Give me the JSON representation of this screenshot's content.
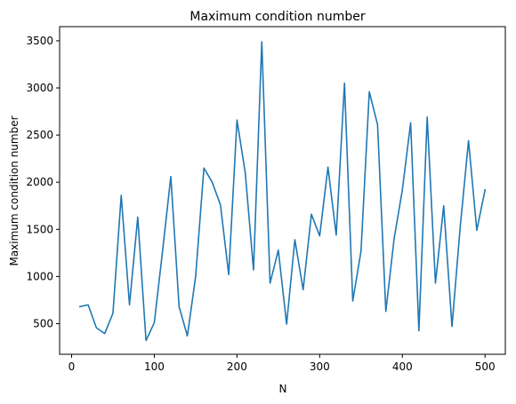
{
  "chart_data": {
    "type": "line",
    "title": "Maximum condition number",
    "xlabel": "N",
    "ylabel": "Maximum condition number",
    "xlim": [
      -14.5,
      524.5
    ],
    "ylim": [
      175,
      3650
    ],
    "xticks": [
      0,
      100,
      200,
      300,
      400,
      500
    ],
    "yticks": [
      500,
      1000,
      1500,
      2000,
      2500,
      3000,
      3500
    ],
    "grid": false,
    "legend": "none",
    "series": [
      {
        "color": "#1f77b4",
        "x": [
          10,
          20,
          30,
          40,
          50,
          60,
          70,
          80,
          90,
          100,
          110,
          120,
          130,
          140,
          150,
          160,
          170,
          180,
          190,
          200,
          210,
          220,
          230,
          240,
          250,
          260,
          270,
          280,
          290,
          300,
          310,
          320,
          330,
          340,
          350,
          360,
          370,
          380,
          390,
          400,
          410,
          420,
          430,
          440,
          450,
          460,
          470,
          480,
          490,
          500
        ],
        "y": [
          680,
          700,
          455,
          395,
          610,
          1860,
          700,
          1630,
          320,
          510,
          1270,
          2060,
          680,
          370,
          1000,
          2150,
          2000,
          1760,
          1020,
          2660,
          2100,
          1070,
          3490,
          930,
          1280,
          495,
          1390,
          860,
          1660,
          1430,
          2160,
          1440,
          3050,
          740,
          1270,
          2960,
          2610,
          630,
          1400,
          1920,
          2630,
          425,
          2690,
          930,
          1750,
          470,
          1530,
          2440,
          1490,
          1920
        ]
      }
    ]
  }
}
